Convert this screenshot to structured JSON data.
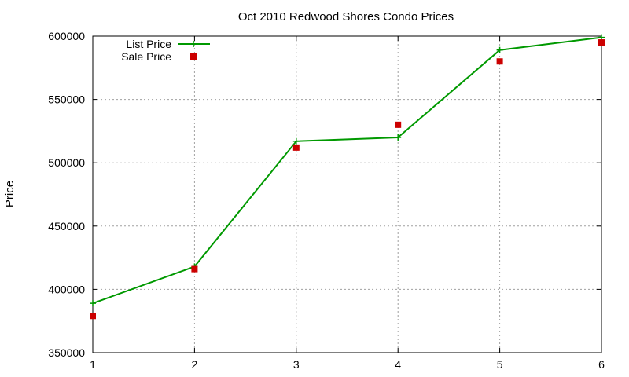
{
  "chart_data": {
    "type": "line",
    "title": "Oct 2010 Redwood Shores Condo Prices",
    "xlabel": "",
    "ylabel": "Price",
    "x": [
      1,
      2,
      3,
      4,
      5,
      6
    ],
    "xlim": [
      1,
      6
    ],
    "ylim": [
      350000,
      600000
    ],
    "xticks": [
      "1",
      "2",
      "3",
      "4",
      "5",
      "6"
    ],
    "yticks": [
      "350000",
      "400000",
      "450000",
      "500000",
      "550000",
      "600000"
    ],
    "grid": true,
    "legend_position": "top-left",
    "series": [
      {
        "name": "List Price",
        "style": "line-with-plus-markers",
        "color": "#009900",
        "values": [
          389000,
          418000,
          517000,
          520000,
          589000,
          599000
        ]
      },
      {
        "name": "Sale Price",
        "style": "square-markers",
        "color": "#cc0000",
        "values": [
          379000,
          416000,
          512000,
          530000,
          580000,
          595000
        ]
      }
    ]
  }
}
